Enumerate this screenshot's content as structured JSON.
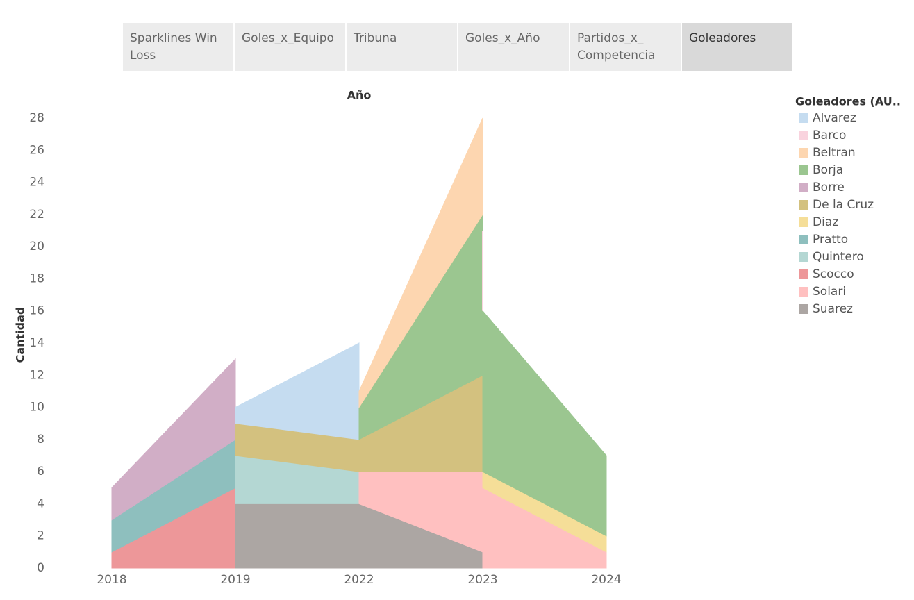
{
  "tabs": [
    "Sparklines Win Loss",
    "Goles_x_Equipo",
    "Tribuna",
    "Goles_x_Año",
    "Partidos_x_ Competencia",
    "Goleadores"
  ],
  "active_tab": 5,
  "chart_data": {
    "type": "area",
    "x_title": "Año",
    "y_title": "Cantidad",
    "legend_title": "Goleadores (AU..",
    "categories": [
      "2018",
      "2019",
      "2022",
      "2023",
      "2024"
    ],
    "ylim": [
      0,
      28
    ],
    "yticks": [
      0,
      2,
      4,
      6,
      8,
      10,
      12,
      14,
      16,
      18,
      20,
      22,
      24,
      26,
      28
    ],
    "grid": false,
    "series": [
      {
        "name": "Alvarez",
        "color": "#c5dcf0",
        "values": [
          null,
          1,
          6,
          null,
          null
        ]
      },
      {
        "name": "Barco",
        "color": "#f9d3de",
        "values": [
          null,
          null,
          null,
          5,
          null
        ]
      },
      {
        "name": "Beltran",
        "color": "#fdd6b0",
        "values": [
          null,
          null,
          1,
          6,
          null
        ]
      },
      {
        "name": "Borja",
        "color": "#9bc690",
        "values": [
          null,
          null,
          2,
          10,
          5
        ]
      },
      {
        "name": "Borre",
        "color": "#d1aec6",
        "values": [
          2,
          5,
          null,
          null,
          null
        ]
      },
      {
        "name": "De la Cruz",
        "color": "#d3c17f",
        "values": [
          null,
          2,
          2,
          6,
          null
        ]
      },
      {
        "name": "Diaz",
        "color": "#f5de98",
        "values": [
          null,
          null,
          null,
          1,
          1
        ]
      },
      {
        "name": "Pratto",
        "color": "#8ebfbe",
        "values": [
          2,
          3,
          null,
          null,
          null
        ]
      },
      {
        "name": "Quintero",
        "color": "#b4d7d3",
        "values": [
          null,
          3,
          2,
          null,
          null
        ]
      },
      {
        "name": "Scocco",
        "color": "#ed9799",
        "values": [
          1,
          5,
          null,
          null,
          null
        ]
      },
      {
        "name": "Solari",
        "color": "#ffc0c0",
        "values": [
          null,
          null,
          2,
          5,
          1
        ]
      },
      {
        "name": "Suarez",
        "color": "#aca6a3",
        "values": [
          null,
          4,
          4,
          1,
          null
        ]
      }
    ]
  }
}
